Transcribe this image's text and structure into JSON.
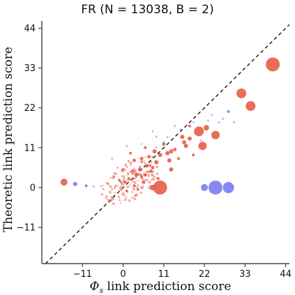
{
  "chart_data": {
    "type": "scatter",
    "title": "FR (N = 13038, B = 2)",
    "xlabel": "Φ_s link prediction score",
    "ylabel": "Theoretic link prediction score",
    "xlim": [
      -22,
      45
    ],
    "ylim": [
      -21,
      46
    ],
    "xticks": [
      -11,
      0,
      11,
      22,
      33,
      44
    ],
    "yticks": [
      -11,
      0,
      11,
      22,
      33,
      44
    ],
    "xtick_labels": [
      "−11",
      "0",
      "11",
      "22",
      "33",
      "44"
    ],
    "ytick_labels": [
      "−11",
      "0",
      "11",
      "22",
      "33",
      "44"
    ],
    "reference_line": "y = x (dashed)",
    "grid": false,
    "legend": "none",
    "colors": {
      "red": "#e8604c",
      "blue": "#7b7ff0",
      "diag": "#111111"
    },
    "series": [
      {
        "color": "red",
        "points": [
          {
            "x": 40.5,
            "y": 34,
            "size": 10
          },
          {
            "x": 32,
            "y": 26,
            "size": 7
          },
          {
            "x": 34.5,
            "y": 22.5,
            "size": 7
          },
          {
            "x": 20.5,
            "y": 15.5,
            "size": 7
          },
          {
            "x": 25,
            "y": 14.5,
            "size": 6
          },
          {
            "x": 21.5,
            "y": 11.5,
            "size": 6
          },
          {
            "x": 10,
            "y": 0,
            "size": 10
          },
          {
            "x": 8,
            "y": 0,
            "size": 4
          },
          {
            "x": -16,
            "y": 1.5,
            "size": 5
          },
          {
            "x": 22.5,
            "y": 16.5,
            "size": 4
          },
          {
            "x": 17,
            "y": 11.5,
            "size": 3
          },
          {
            "x": 18,
            "y": 13.5,
            "size": 3
          },
          {
            "x": 16,
            "y": 14,
            "size": 3
          },
          {
            "x": 16.5,
            "y": 12.5,
            "size": 3
          },
          {
            "x": 13,
            "y": 10,
            "size": 3
          },
          {
            "x": 12,
            "y": 9.5,
            "size": 3
          },
          {
            "x": 12.5,
            "y": 7.5,
            "size": 3
          },
          {
            "x": 13,
            "y": 5,
            "size": 3
          },
          {
            "x": 8.5,
            "y": 10,
            "size": 3
          },
          {
            "x": 10,
            "y": 9,
            "size": 3
          },
          {
            "x": 9,
            "y": 7,
            "size": 3
          },
          {
            "x": 7.5,
            "y": 4.5,
            "size": 2.5
          },
          {
            "x": 6.5,
            "y": 6,
            "size": 2.5
          },
          {
            "x": 8,
            "y": 5.5,
            "size": 2.5
          },
          {
            "x": 5,
            "y": 8,
            "size": 2.5
          },
          {
            "x": 3,
            "y": 7.5,
            "size": 2.5
          },
          {
            "x": 2,
            "y": 9.5,
            "size": 2
          },
          {
            "x": 6,
            "y": 3.5,
            "size": 2.5
          },
          {
            "x": 5.5,
            "y": 1.5,
            "size": 2.5
          },
          {
            "x": 3.5,
            "y": 3.5,
            "size": 2.5
          },
          {
            "x": 4.5,
            "y": 5,
            "size": 2.5
          },
          {
            "x": 2.5,
            "y": 4.5,
            "size": 2
          },
          {
            "x": 1.5,
            "y": 2.5,
            "size": 2
          },
          {
            "x": 0.5,
            "y": 1.5,
            "size": 2
          },
          {
            "x": -1,
            "y": 2,
            "size": 2
          },
          {
            "x": -2.5,
            "y": 3,
            "size": 1.8
          },
          {
            "x": 0,
            "y": 5,
            "size": 1.8
          },
          {
            "x": -1.5,
            "y": 5.5,
            "size": 1.5
          },
          {
            "x": 3,
            "y": 0.5,
            "size": 2
          },
          {
            "x": 4,
            "y": -0.5,
            "size": 2
          },
          {
            "x": 1,
            "y": -1,
            "size": 2
          },
          {
            "x": -0.5,
            "y": -0.5,
            "size": 1.8
          },
          {
            "x": -2,
            "y": 0.5,
            "size": 1.8
          },
          {
            "x": -4,
            "y": 1,
            "size": 1.8
          },
          {
            "x": -3,
            "y": -0.5,
            "size": 1.5
          },
          {
            "x": 5,
            "y": 3,
            "size": 2
          },
          {
            "x": 7,
            "y": 8.5,
            "size": 2.5
          },
          {
            "x": 11,
            "y": 12,
            "size": 2.5
          },
          {
            "x": 14,
            "y": 10.5,
            "size": 2.5
          },
          {
            "x": 19,
            "y": 9,
            "size": 2
          },
          {
            "x": 15,
            "y": 8,
            "size": 2
          },
          {
            "x": 18,
            "y": 17,
            "size": 2
          },
          {
            "x": 6,
            "y": 11,
            "size": 2
          },
          {
            "x": 1,
            "y": 11.5,
            "size": 1.5
          },
          {
            "x": -3,
            "y": 8,
            "size": 1.5
          },
          {
            "x": 9.5,
            "y": 2.5,
            "size": 2
          }
        ]
      },
      {
        "color": "blue",
        "points": [
          {
            "x": 25,
            "y": 0,
            "size": 10
          },
          {
            "x": 28.5,
            "y": 0,
            "size": 8
          },
          {
            "x": 22,
            "y": 0,
            "size": 5
          },
          {
            "x": -13,
            "y": 1,
            "size": 3
          },
          {
            "x": -10,
            "y": 0.5,
            "size": 2
          },
          {
            "x": -8,
            "y": 0.3,
            "size": 1.5
          },
          {
            "x": -6,
            "y": 0.4,
            "size": 1.5
          },
          {
            "x": 28.5,
            "y": 21,
            "size": 2
          },
          {
            "x": 27,
            "y": 19,
            "size": 1.5
          },
          {
            "x": 26,
            "y": 18,
            "size": 1.5
          },
          {
            "x": 30,
            "y": 18,
            "size": 1.5
          },
          {
            "x": 24,
            "y": 20,
            "size": 1.5
          },
          {
            "x": 23,
            "y": 18.5,
            "size": 1.5
          },
          {
            "x": 19,
            "y": 18,
            "size": 1.5
          },
          {
            "x": 8,
            "y": 15.5,
            "size": 1.5
          },
          {
            "x": 9,
            "y": 14,
            "size": 1.5
          },
          {
            "x": 14,
            "y": 17,
            "size": 1.5
          },
          {
            "x": 11,
            "y": 12.5,
            "size": 1.5
          },
          {
            "x": 15.5,
            "y": 16,
            "size": 1.5
          },
          {
            "x": 21,
            "y": 13,
            "size": 1.5
          },
          {
            "x": 9,
            "y": 11,
            "size": 1.5
          },
          {
            "x": 12,
            "y": 14,
            "size": 1.5
          },
          {
            "x": 5,
            "y": 12,
            "size": 1.2
          },
          {
            "x": 2,
            "y": 6,
            "size": 1.2
          }
        ]
      }
    ]
  }
}
